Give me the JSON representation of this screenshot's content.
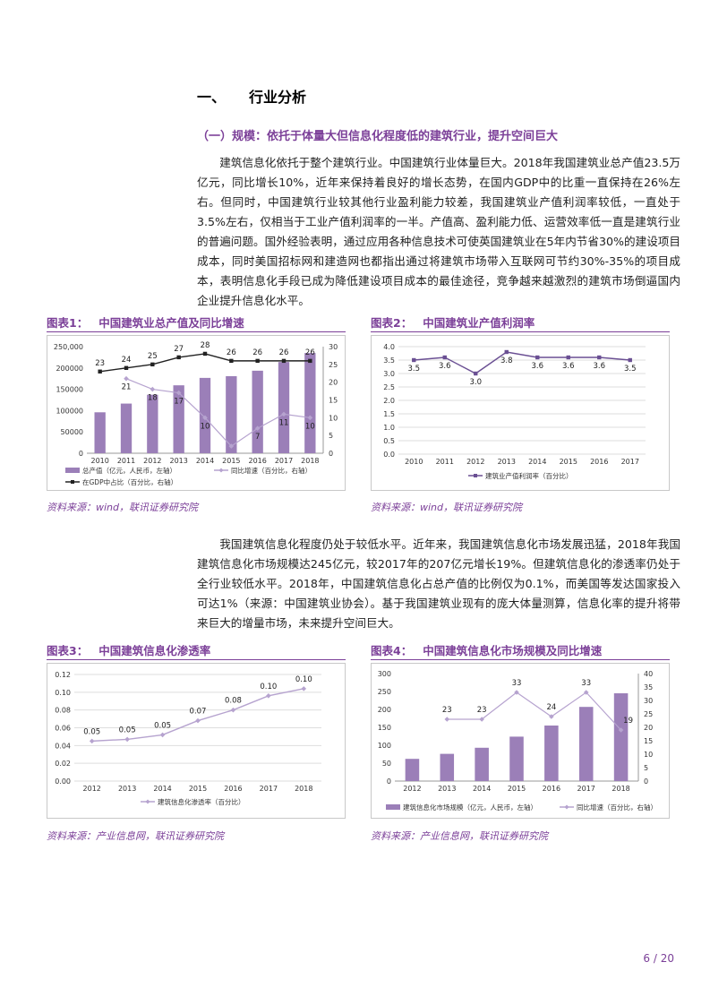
{
  "section": {
    "num": "一、",
    "title": "行业分析"
  },
  "subsection": "（一）规模：依托于体量大但信息化程度低的建筑行业，提升空间巨大",
  "para1": "建筑信息化依托于整个建筑行业。中国建筑行业体量巨大。2018年我国建筑业总产值23.5万亿元，同比增长10%，近年来保持着良好的增长态势，在国内GDP中的比重一直保持在26%左右。但同时，中国建筑行业较其他行业盈利能力较差，我国建筑业产值利润率较低，一直处于3.5%左右，仅相当于工业产值利润率的一半。产值高、盈利能力低、运营效率低一直是建筑行业的普遍问题。国外经验表明，通过应用各种信息技术可使英国建筑业在5年内节省30%的建设项目成本，同时美国招标网和建造网也都指出通过将建筑市场带入互联网可节约30%-35%的项目成本，表明信息化手段已成为降低建设项目成本的最佳途径，竞争越来越激烈的建筑市场倒逼国内企业提升信息化水平。",
  "para2": "我国建筑信息化程度仍处于较低水平。近年来，我国建筑信息化市场发展迅猛，2018年我国建筑信息化市场规模达245亿元，较2017年的207亿元增长19%。但建筑信息化的渗透率仍处于全行业较低水平。2018年，中国建筑信息化占总产值的比例仅为0.1%，而美国等发达国家投入可达1%（来源：中国建筑业协会）。基于我国建筑业现有的庞大体量测算，信息化率的提升将带来巨大的增量市场，未来提升空间巨大。",
  "figures": [
    {
      "label": "图表1：",
      "title": "中国建筑业总产值及同比增速",
      "source": "资料来源：wind，联讯证券研究院"
    },
    {
      "label": "图表2：",
      "title": "中国建筑业产值利润率",
      "source": "资料来源：wind，联讯证券研究院"
    },
    {
      "label": "图表3：",
      "title": "中国建筑信息化渗透率",
      "source": "资料来源：产业信息网，联讯证券研究院"
    },
    {
      "label": "图表4：",
      "title": "中国建筑信息化市场规模及同比增速",
      "source": "资料来源：产业信息网，联讯证券研究院"
    }
  ],
  "page_number": "6 / 20",
  "colors": {
    "accent": "#7b3f98",
    "bar": "#9b7fb8",
    "line_light": "#b6a3cf",
    "line_dark": "#222222",
    "line_mid": "#6a4f93"
  },
  "chart_data": [
    {
      "type": "bar",
      "categories": [
        "2010",
        "2011",
        "2012",
        "2013",
        "2014",
        "2015",
        "2016",
        "2017",
        "2018"
      ],
      "y_left": {
        "ylim": [
          0,
          250000
        ],
        "ticks": [
          "0",
          "50000",
          "100000",
          "150000",
          "200000",
          "250,000"
        ]
      },
      "y_right": {
        "ylim": [
          0,
          30
        ],
        "ticks": [
          "0",
          "5",
          "10",
          "15",
          "20",
          "25",
          "30"
        ]
      },
      "series": [
        {
          "name": "总产值（亿元，人民币，左轴）",
          "kind": "bar",
          "axis": "left",
          "values": [
            96031,
            116463,
            137218,
            159313,
            176713,
            180757,
            193567,
            213954,
            235086
          ]
        },
        {
          "name": "同比增速（百分比，右轴）",
          "kind": "line",
          "axis": "right",
          "values": [
            null,
            21,
            18,
            17,
            10,
            2,
            7,
            11,
            10
          ],
          "labels": [
            "",
            "21",
            "18",
            "17",
            "10",
            "",
            "7",
            "11",
            "10"
          ]
        },
        {
          "name": "在GDP中占比（百分比，右轴）",
          "kind": "line",
          "axis": "right",
          "values": [
            23,
            24,
            25,
            27,
            28,
            26,
            26,
            26,
            26
          ],
          "labels": [
            "23",
            "24",
            "25",
            "27",
            "28",
            "26",
            "26",
            "26",
            "26"
          ]
        }
      ]
    },
    {
      "type": "line",
      "categories": [
        "2010",
        "2011",
        "2012",
        "2013",
        "2014",
        "2015",
        "2016",
        "2017"
      ],
      "ylim": [
        0,
        4.0
      ],
      "ticks": [
        "0.0",
        "0.5",
        "1.0",
        "1.5",
        "2.0",
        "2.5",
        "3.0",
        "3.5",
        "4.0"
      ],
      "series": [
        {
          "name": "建筑业产值利润率（百分比）",
          "values": [
            3.5,
            3.6,
            3.0,
            3.8,
            3.6,
            3.6,
            3.6,
            3.5
          ],
          "labels": [
            "3.5",
            "3.6",
            "3.0",
            "3.8",
            "3.6",
            "3.6",
            "3.6",
            "3.5"
          ]
        }
      ]
    },
    {
      "type": "line",
      "categories": [
        "2012",
        "2013",
        "2014",
        "2015",
        "2016",
        "2017",
        "2018"
      ],
      "ylim": [
        0,
        0.12
      ],
      "ticks": [
        "0.00",
        "0.02",
        "0.04",
        "0.06",
        "0.08",
        "0.10",
        "0.12"
      ],
      "series": [
        {
          "name": "建筑信息化渗透率（百分比）",
          "values": [
            0.045,
            0.047,
            0.052,
            0.068,
            0.08,
            0.096,
            0.104
          ],
          "labels": [
            "0.05",
            "0.05",
            "0.05",
            "0.07",
            "0.08",
            "0.10",
            "0.10"
          ]
        }
      ]
    },
    {
      "type": "bar",
      "categories": [
        "2012",
        "2013",
        "2014",
        "2015",
        "2016",
        "2017",
        "2018"
      ],
      "y_left": {
        "ylim": [
          0,
          300
        ],
        "ticks": [
          "0",
          "50",
          "100",
          "150",
          "200",
          "250",
          "300"
        ]
      },
      "y_right": {
        "ylim": [
          0,
          40
        ],
        "ticks": [
          "0",
          "5",
          "10",
          "15",
          "20",
          "25",
          "30",
          "35",
          "40"
        ]
      },
      "series": [
        {
          "name": "建筑信息化市场规模（亿元，人民币，左轴）",
          "kind": "bar",
          "axis": "left",
          "values": [
            62,
            76,
            93,
            124,
            155,
            207,
            245
          ]
        },
        {
          "name": "同比增速（百分比，右轴）",
          "kind": "line",
          "axis": "right",
          "values": [
            null,
            23,
            23,
            33,
            24,
            33,
            19
          ],
          "labels": [
            "",
            "23",
            "23",
            "33",
            "24",
            "33",
            "19"
          ]
        }
      ]
    }
  ]
}
